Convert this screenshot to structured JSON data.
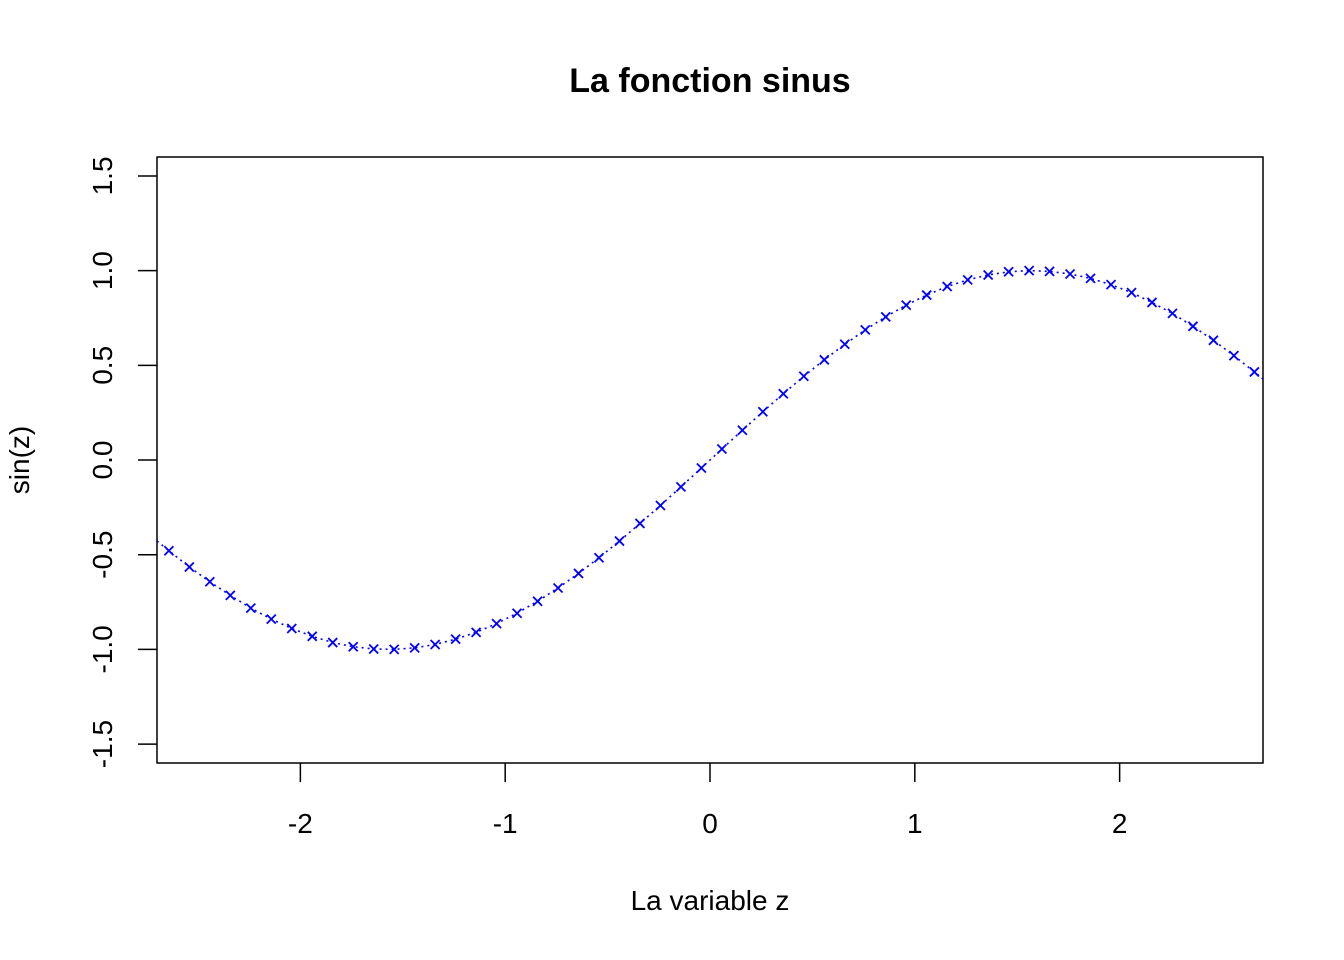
{
  "chart_data": {
    "type": "line",
    "title": "La fonction sinus",
    "xlabel": "La variable z",
    "ylabel": "sin(z)",
    "xlim": [
      -2.7,
      2.7
    ],
    "ylim": [
      -1.6,
      1.6
    ],
    "x_ticks": [
      -2,
      -1,
      0,
      1,
      2
    ],
    "x_tick_labels": [
      "-2",
      "-1",
      "0",
      "1",
      "2"
    ],
    "y_ticks": [
      -1.5,
      -1.0,
      -0.5,
      0.0,
      0.5,
      1.0,
      1.5
    ],
    "y_tick_labels": [
      "-1.5",
      "-1.0",
      "-0.5",
      "0.0",
      "0.5",
      "1.0",
      "1.5"
    ],
    "grid": false,
    "legend": "none",
    "series": [
      {
        "line_style": "dotted",
        "marker": "x",
        "color": "#0000ff",
        "x": [
          -2.642,
          -2.542,
          -2.442,
          -2.342,
          -2.242,
          -2.142,
          -2.042,
          -1.942,
          -1.842,
          -1.742,
          -1.642,
          -1.542,
          -1.442,
          -1.342,
          -1.242,
          -1.142,
          -1.042,
          -0.942,
          -0.842,
          -0.742,
          -0.642,
          -0.542,
          -0.442,
          -0.342,
          -0.242,
          -0.142,
          -0.042,
          0.058,
          0.158,
          0.258,
          0.358,
          0.458,
          0.558,
          0.658,
          0.758,
          0.858,
          0.958,
          1.058,
          1.158,
          1.258,
          1.358,
          1.458,
          1.558,
          1.658,
          1.758,
          1.858,
          1.958,
          2.058,
          2.158,
          2.258,
          2.358,
          2.458,
          2.558,
          2.658
        ],
        "y": [
          -0.479,
          -0.565,
          -0.643,
          -0.715,
          -0.782,
          -0.84,
          -0.89,
          -0.931,
          -0.964,
          -0.986,
          -0.998,
          -1.0,
          -0.992,
          -0.974,
          -0.946,
          -0.91,
          -0.864,
          -0.809,
          -0.746,
          -0.676,
          -0.599,
          -0.516,
          -0.428,
          -0.335,
          -0.24,
          -0.142,
          -0.042,
          0.058,
          0.157,
          0.255,
          0.35,
          0.442,
          0.529,
          0.611,
          0.687,
          0.756,
          0.818,
          0.871,
          0.916,
          0.951,
          0.977,
          0.994,
          1.0,
          0.996,
          0.982,
          0.959,
          0.926,
          0.884,
          0.832,
          0.774,
          0.706,
          0.632,
          0.551,
          0.465
        ]
      }
    ]
  }
}
